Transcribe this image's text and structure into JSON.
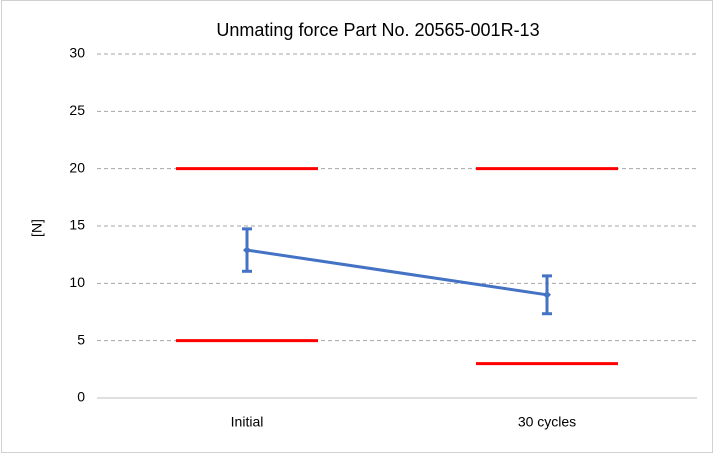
{
  "chart_data": {
    "type": "line",
    "title": "Unmating force Part No. 20565-001R-13",
    "y_label": "[N]",
    "categories": [
      "Initial",
      "30 cycles"
    ],
    "series": [
      {
        "color": "#4472c4",
        "values": [
          12.9,
          9.0
        ],
        "errors": [
          1.85,
          1.65
        ],
        "connect": true
      },
      {
        "color": "#ff0000",
        "values": [
          20,
          20
        ],
        "connect": false
      },
      {
        "color": "#ff0000",
        "values": [
          5,
          3
        ],
        "connect": false
      }
    ],
    "ylim": [
      0,
      30
    ],
    "yticks": [
      0,
      5,
      10,
      15,
      20,
      25,
      30
    ],
    "grid": true
  }
}
